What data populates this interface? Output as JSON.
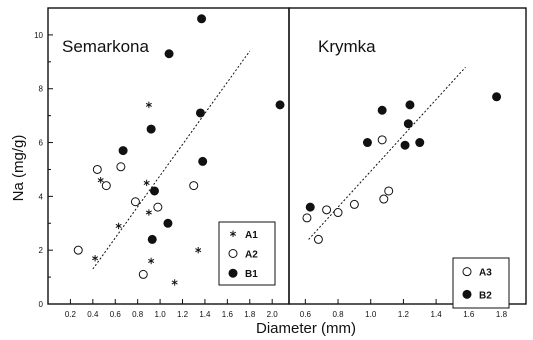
{
  "chart_data": {
    "type": "scatter",
    "ylabel": "Na (mg/g)",
    "xlabel": "Diameter (mm)",
    "ylim": [
      0,
      11
    ],
    "yticks": [
      "0",
      "2",
      "4",
      "6",
      "8",
      "10"
    ],
    "panels": [
      {
        "title": "Semarkona",
        "xlim": [
          0,
          2.15
        ],
        "xticks": [
          "0.2",
          "0.4",
          "0.6",
          "0.8",
          "1.0",
          "1.2",
          "1.4",
          "1.6",
          "1.8",
          "2.0"
        ],
        "trend": {
          "x": [
            0.4,
            1.8
          ],
          "y": [
            1.3,
            9.4
          ]
        },
        "series": [
          {
            "name": "A1",
            "marker": "asterisk",
            "points": [
              [
                0.42,
                1.7
              ],
              [
                0.47,
                4.6
              ],
              [
                0.63,
                2.9
              ],
              [
                0.88,
                4.5
              ],
              [
                0.9,
                7.4
              ],
              [
                0.9,
                3.4
              ],
              [
                0.92,
                1.6
              ],
              [
                1.13,
                0.8
              ],
              [
                1.34,
                2.0
              ]
            ]
          },
          {
            "name": "A2",
            "marker": "open",
            "points": [
              [
                0.27,
                2.0
              ],
              [
                0.44,
                5.0
              ],
              [
                0.52,
                4.4
              ],
              [
                0.65,
                5.1
              ],
              [
                0.78,
                3.8
              ],
              [
                0.85,
                1.1
              ],
              [
                0.98,
                3.6
              ],
              [
                1.3,
                4.4
              ]
            ]
          },
          {
            "name": "B1",
            "marker": "filled",
            "points": [
              [
                0.67,
                5.7
              ],
              [
                0.92,
                6.5
              ],
              [
                0.93,
                2.4
              ],
              [
                0.95,
                4.2
              ],
              [
                1.07,
                3.0
              ],
              [
                1.08,
                9.3
              ],
              [
                1.36,
                7.1
              ],
              [
                1.37,
                10.6
              ],
              [
                1.38,
                5.3
              ],
              [
                2.07,
                7.4
              ]
            ]
          }
        ]
      },
      {
        "title": "Krymka",
        "xlim": [
          0.5,
          1.95
        ],
        "xticks": [
          "0.6",
          "0.8",
          "1.0",
          "1.2",
          "1.4",
          "1.6",
          "1.8"
        ],
        "trend": {
          "x": [
            0.62,
            1.58
          ],
          "y": [
            2.4,
            8.8
          ]
        },
        "series": [
          {
            "name": "A3",
            "marker": "open",
            "points": [
              [
                0.61,
                3.2
              ],
              [
                0.68,
                2.4
              ],
              [
                0.73,
                3.5
              ],
              [
                0.8,
                3.4
              ],
              [
                0.9,
                3.7
              ],
              [
                1.07,
                6.1
              ],
              [
                1.08,
                3.9
              ],
              [
                1.11,
                4.2
              ]
            ]
          },
          {
            "name": "B2",
            "marker": "filled",
            "points": [
              [
                0.63,
                3.6
              ],
              [
                0.98,
                6.0
              ],
              [
                1.07,
                7.2
              ],
              [
                1.21,
                5.9
              ],
              [
                1.23,
                6.7
              ],
              [
                1.24,
                7.4
              ],
              [
                1.3,
                6.0
              ],
              [
                1.77,
                7.7
              ]
            ]
          }
        ]
      }
    ]
  }
}
